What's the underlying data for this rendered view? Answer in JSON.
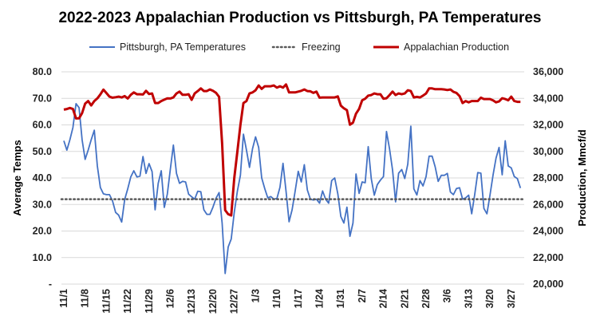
{
  "chart_data": {
    "type": "line",
    "title": "2022-2023 Appalachian Production vs Pittsburgh, PA Temperatures",
    "ylabel_left": "Average Temps",
    "ylabel_right": "Production, Mmcf/d",
    "ylim_left": [
      0,
      80
    ],
    "ylim_right": [
      20000,
      36000
    ],
    "yticks_left": [
      "-",
      "10.0",
      "20.0",
      "30.0",
      "40.0",
      "50.0",
      "60.0",
      "70.0",
      "80.0"
    ],
    "yticks_right": [
      "20,000",
      "22,000",
      "24,000",
      "26,000",
      "28,000",
      "30,000",
      "32,000",
      "34,000",
      "36,000"
    ],
    "xticks": [
      "11/1",
      "11/8",
      "11/15",
      "11/22",
      "11/29",
      "12/6",
      "12/13",
      "12/20",
      "12/27",
      "1/3",
      "1/10",
      "1/17",
      "1/24",
      "1/31",
      "2/7",
      "2/14",
      "2/21",
      "2/28",
      "3/6",
      "3/13",
      "3/20",
      "3/27"
    ],
    "grid": true,
    "legend_position": "top",
    "series": [
      {
        "name": "Pittsburgh, PA Temperatures",
        "axis": "left",
        "color": "#4472C4",
        "style": "solid",
        "values": [
          54,
          50.5,
          54.4,
          59,
          68,
          66.5,
          54.4,
          47,
          50.5,
          54.4,
          58,
          44.5,
          36.4,
          34,
          33.7,
          33.7,
          31.4,
          27,
          26,
          23.4,
          31.9,
          35.9,
          40.4,
          42.7,
          40.4,
          40.7,
          48.1,
          41.7,
          45.4,
          42.4,
          28,
          38,
          42.7,
          28.9,
          33.9,
          43.3,
          52.4,
          41.7,
          38,
          38.7,
          38.5,
          33.9,
          32.9,
          32,
          35,
          34.8,
          28,
          26.3,
          26.3,
          29,
          32.4,
          34.5,
          23,
          4,
          14,
          17,
          27,
          35,
          41,
          56.5,
          50.5,
          44,
          51,
          55.5,
          51.5,
          40,
          36,
          32.5,
          33,
          32,
          32.3,
          36.5,
          45.5,
          35,
          23.5,
          28,
          35,
          42.5,
          38.5,
          45,
          35.5,
          32,
          31.7,
          32,
          30.5,
          35.1,
          32,
          30.5,
          39,
          40,
          34,
          25.5,
          23,
          29,
          18,
          23,
          41.5,
          34.2,
          38.5,
          38.2,
          51.8,
          39.8,
          33.5,
          37.5,
          39.2,
          40.5,
          57.5,
          51,
          43,
          31,
          41.8,
          43.2,
          39.8,
          45.2,
          59.5,
          35.9,
          33.6,
          39,
          37,
          40.5,
          48.2,
          48.2,
          44.2,
          38.7,
          41,
          41,
          41.7,
          34.7,
          33.7,
          36,
          36.3,
          32,
          32.5,
          33.5,
          26.5,
          33.8,
          42,
          41.8,
          28.5,
          26.5,
          33.5,
          41,
          47.5,
          51.5,
          41.2,
          54,
          44.5,
          43.8,
          40.5,
          39.8,
          36.2
        ]
      },
      {
        "name": "Freezing",
        "axis": "left",
        "color": "#595959",
        "style": "dotted",
        "constant": 32
      },
      {
        "name": "Appalachian Production",
        "axis": "right",
        "color": "#C00000",
        "style": "solid",
        "values": [
          33150,
          33200,
          33275,
          33200,
          32490,
          32500,
          32890,
          33600,
          33800,
          33470,
          33800,
          34000,
          34300,
          34660,
          34400,
          34130,
          34050,
          34090,
          34130,
          34070,
          34170,
          33990,
          34270,
          34450,
          34310,
          34310,
          34290,
          34570,
          34330,
          34370,
          33650,
          33650,
          33800,
          33900,
          34000,
          33990,
          34070,
          34370,
          34510,
          34270,
          34270,
          34310,
          33890,
          34370,
          34550,
          34750,
          34550,
          34550,
          34670,
          34570,
          34410,
          34110,
          30590,
          25570,
          25270,
          25170,
          27980,
          29990,
          31990,
          33650,
          33800,
          34370,
          34450,
          34610,
          34970,
          34710,
          34910,
          34910,
          34910,
          34970,
          34810,
          34910,
          34810,
          35050,
          34450,
          34450,
          34450,
          34510,
          34570,
          34670,
          34550,
          34530,
          34410,
          34510,
          34050,
          34070,
          34070,
          34070,
          34070,
          34070,
          34150,
          33450,
          33250,
          33110,
          32010,
          32170,
          32850,
          33210,
          33850,
          33970,
          34210,
          34250,
          34370,
          34310,
          34310,
          33970,
          34010,
          34250,
          34510,
          34250,
          34370,
          34310,
          34370,
          34610,
          34550,
          34070,
          34110,
          34070,
          34210,
          34370,
          34750,
          34750,
          34690,
          34690,
          34690,
          34670,
          34630,
          34670,
          34490,
          34410,
          34170,
          33650,
          33800,
          33700,
          33800,
          33800,
          33800,
          34050,
          33950,
          33950,
          33950,
          33850,
          33700,
          33770,
          34010,
          33950,
          33850,
          34130,
          33800,
          33740,
          33740
        ]
      }
    ]
  }
}
